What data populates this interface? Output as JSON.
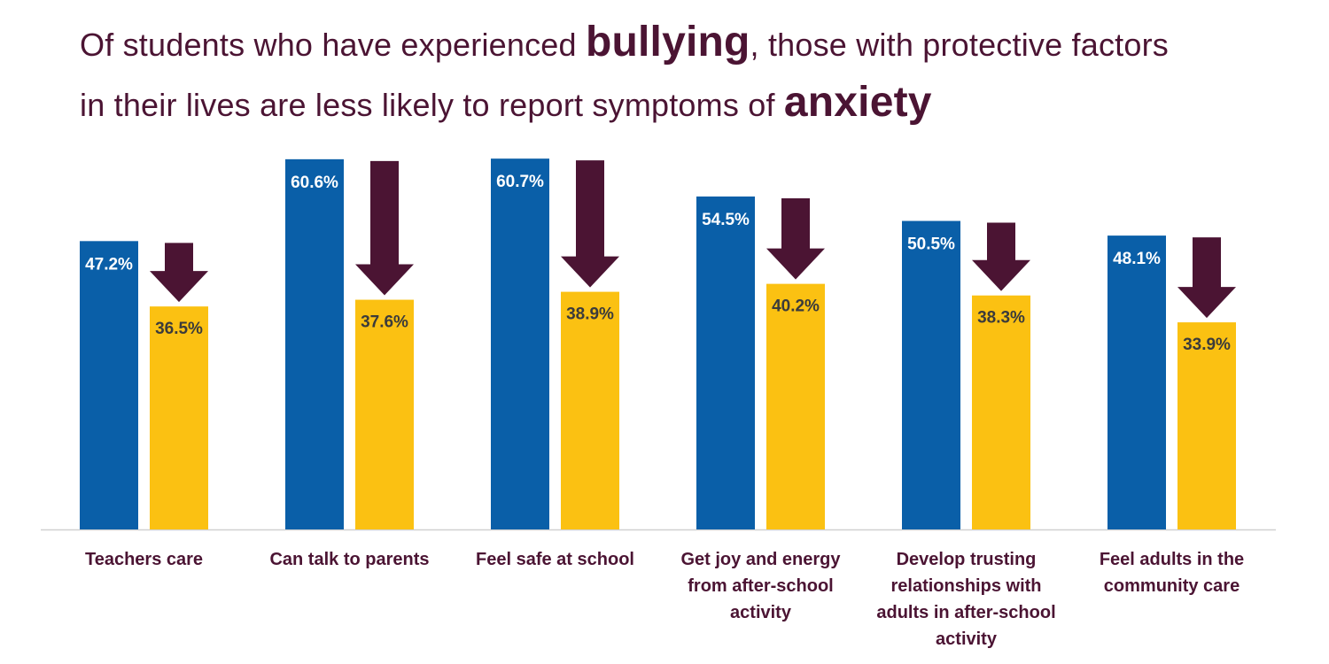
{
  "title": {
    "line1_pre": "Of students who have experienced ",
    "line1_emph": "bullying",
    "line1_post": ", those with protective factors",
    "line2_pre": "in their lives are less likely to report symptoms of ",
    "line2_emph": "anxiety"
  },
  "colors": {
    "title": "#4b1433",
    "series_a": "#0a5fa8",
    "series_b": "#fbc112",
    "arrow": "#4b1433",
    "label_on_a": "#ffffff",
    "label_on_b": "#3b3b3b",
    "axis": "#d0d0d0"
  },
  "chart_data": {
    "type": "bar",
    "categories": [
      [
        "Teachers care"
      ],
      [
        "Can talk to parents"
      ],
      [
        "Feel safe at school"
      ],
      [
        "Get joy and energy",
        "from after-school",
        "activity"
      ],
      [
        "Develop trusting",
        "relationships with",
        "adults in after-school",
        "activity"
      ],
      [
        "Feel adults in the",
        "community care"
      ]
    ],
    "series": [
      {
        "values": [
          47.2,
          60.6,
          60.7,
          54.5,
          50.5,
          48.1
        ],
        "labels": [
          "47.2%",
          "60.6%",
          "60.7%",
          "54.5%",
          "50.5%",
          "48.1%"
        ]
      },
      {
        "values": [
          36.5,
          37.6,
          38.9,
          40.2,
          38.3,
          33.9
        ],
        "labels": [
          "36.5%",
          "37.6%",
          "38.9%",
          "40.2%",
          "38.3%",
          "33.9%"
        ]
      }
    ],
    "annotations": "downward arrow over each pair, from the first bar's value to the second bar's value",
    "ylim": [
      0,
      68
    ],
    "grid": false,
    "legend": "none"
  }
}
